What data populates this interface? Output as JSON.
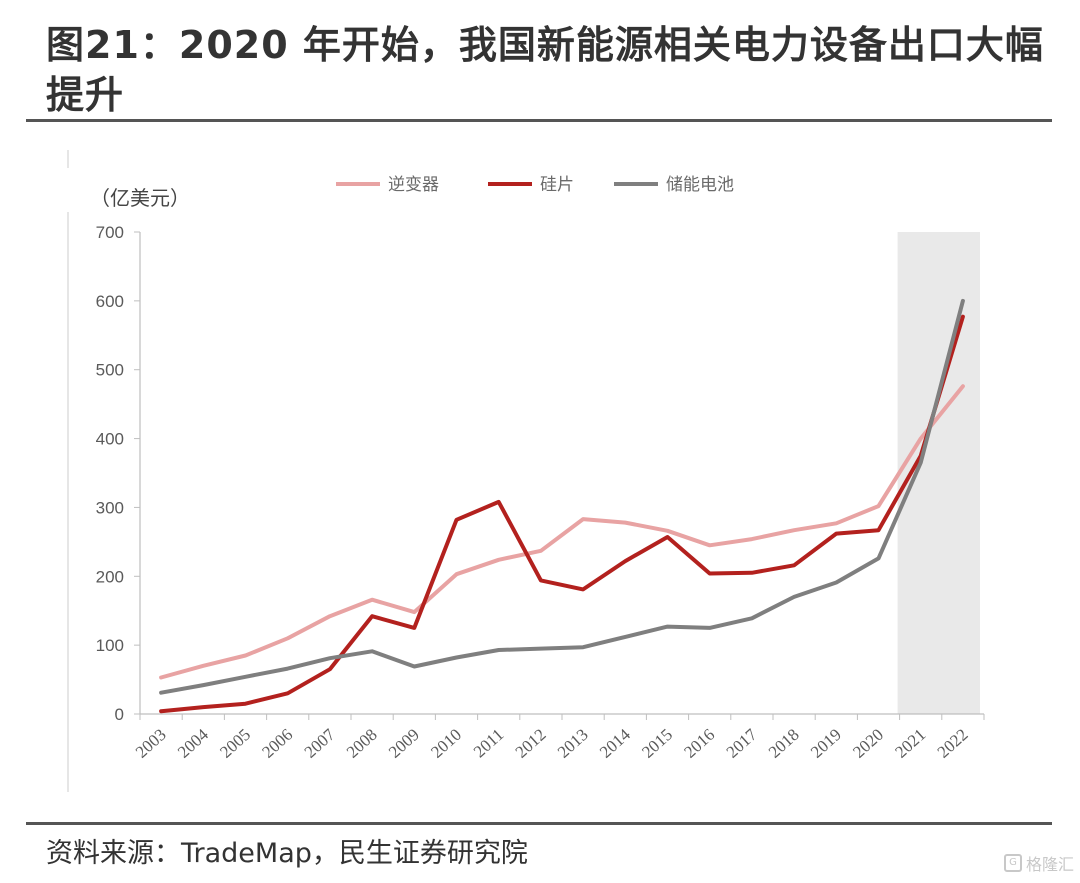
{
  "header": {
    "title": "图21：2020 年开始，我国新能源相关电力设备出口大幅提升"
  },
  "footer": {
    "source": "资料来源：TradeMap，民生证券研究院",
    "watermark": "格隆汇"
  },
  "chart_data": {
    "type": "line",
    "unit_label": "（亿美元）",
    "x": [
      "2003",
      "2004",
      "2005",
      "2006",
      "2007",
      "2008",
      "2009",
      "2010",
      "2011",
      "2012",
      "2013",
      "2014",
      "2015",
      "2016",
      "2017",
      "2018",
      "2019",
      "2020",
      "2021",
      "2022"
    ],
    "ylim": [
      0,
      700
    ],
    "yticks": [
      0,
      100,
      200,
      300,
      400,
      500,
      600,
      700
    ],
    "legend_position": "top",
    "highlight_range": [
      "2021",
      "2022"
    ],
    "highlight_color": "#e9e9e9",
    "series": [
      {
        "name": "逆变器",
        "color": "#e8a3a3",
        "values": [
          53,
          70,
          85,
          110,
          142,
          166,
          148,
          203,
          224,
          237,
          283,
          278,
          266,
          245,
          254,
          267,
          277,
          302,
          400,
          476
        ]
      },
      {
        "name": "硅片",
        "color": "#b3211e",
        "values": [
          4,
          10,
          15,
          30,
          65,
          142,
          125,
          282,
          308,
          194,
          181,
          222,
          257,
          204,
          205,
          216,
          262,
          267,
          375,
          577
        ]
      },
      {
        "name": "储能电池",
        "color": "#7f7f7f",
        "values": [
          31,
          42,
          54,
          66,
          81,
          91,
          69,
          82,
          93,
          95,
          97,
          112,
          127,
          125,
          139,
          170,
          191,
          226,
          365,
          600
        ]
      }
    ]
  }
}
